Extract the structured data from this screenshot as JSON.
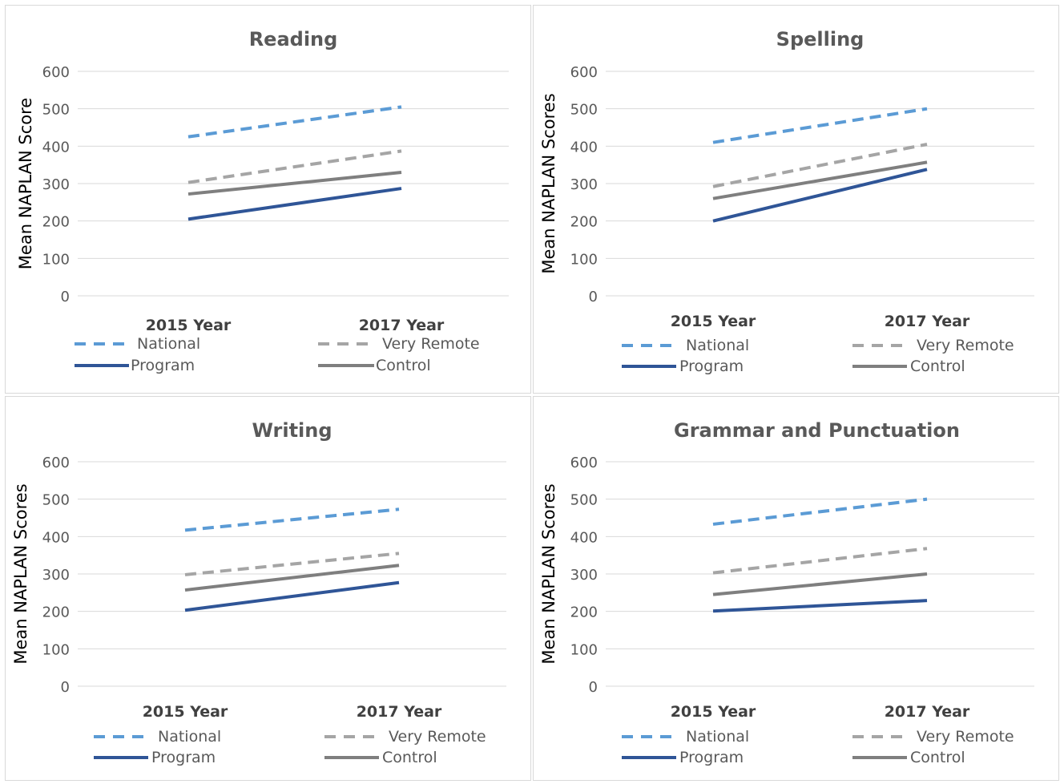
{
  "chart_data": [
    {
      "type": "line",
      "title": "Reading",
      "xlabel": "",
      "ylabel": "Mean NAPLAN Score",
      "ylim": [
        0,
        600
      ],
      "yticks": [
        "0",
        "100",
        "200",
        "300",
        "400",
        "500",
        "600"
      ],
      "categories": [
        "2015 Year",
        "2017 Year"
      ],
      "grid": true,
      "legend": "bottom",
      "series": [
        {
          "name": "National",
          "values": [
            425,
            505
          ],
          "color": "#5b9bd5",
          "dashed": true
        },
        {
          "name": "Very Remote",
          "values": [
            303,
            387
          ],
          "color": "#a5a5a5",
          "dashed": true
        },
        {
          "name": "Program",
          "values": [
            205,
            287
          ],
          "color": "#2f5597",
          "dashed": false
        },
        {
          "name": "Control",
          "values": [
            272,
            330
          ],
          "color": "#7f7f7f",
          "dashed": false
        }
      ]
    },
    {
      "type": "line",
      "title": "Spelling",
      "xlabel": "",
      "ylabel": "Mean NAPLAN Scores",
      "ylim": [
        0,
        600
      ],
      "yticks": [
        "0",
        "100",
        "200",
        "300",
        "400",
        "500",
        "600"
      ],
      "categories": [
        "2015 Year",
        "2017 Year"
      ],
      "grid": true,
      "legend": "bottom",
      "series": [
        {
          "name": "National",
          "values": [
            410,
            500
          ],
          "color": "#5b9bd5",
          "dashed": true
        },
        {
          "name": "Very Remote",
          "values": [
            292,
            405
          ],
          "color": "#a5a5a5",
          "dashed": true
        },
        {
          "name": "Program",
          "values": [
            200,
            338
          ],
          "color": "#2f5597",
          "dashed": false
        },
        {
          "name": "Control",
          "values": [
            260,
            357
          ],
          "color": "#7f7f7f",
          "dashed": false
        }
      ]
    },
    {
      "type": "line",
      "title": "Writing",
      "xlabel": "",
      "ylabel": "Mean NAPLAN Scores",
      "ylim": [
        0,
        600
      ],
      "yticks": [
        "0",
        "100",
        "200",
        "300",
        "400",
        "500",
        "600"
      ],
      "categories": [
        "2015 Year",
        "2017 Year"
      ],
      "grid": true,
      "legend": "bottom",
      "series": [
        {
          "name": "National",
          "values": [
            417,
            473
          ],
          "color": "#5b9bd5",
          "dashed": true
        },
        {
          "name": "Very Remote",
          "values": [
            298,
            355
          ],
          "color": "#a5a5a5",
          "dashed": true
        },
        {
          "name": "Program",
          "values": [
            203,
            277
          ],
          "color": "#2f5597",
          "dashed": false
        },
        {
          "name": "Control",
          "values": [
            257,
            323
          ],
          "color": "#7f7f7f",
          "dashed": false
        }
      ]
    },
    {
      "type": "line",
      "title": "Grammar and Punctuation",
      "xlabel": "",
      "ylabel": "Mean NAPLAN Scores",
      "ylim": [
        0,
        600
      ],
      "yticks": [
        "0",
        "100",
        "200",
        "300",
        "400",
        "500",
        "600"
      ],
      "categories": [
        "2015 Year",
        "2017 Year"
      ],
      "grid": true,
      "legend": "bottom",
      "series": [
        {
          "name": "National",
          "values": [
            433,
            500
          ],
          "color": "#5b9bd5",
          "dashed": true
        },
        {
          "name": "Very Remote",
          "values": [
            303,
            368
          ],
          "color": "#a5a5a5",
          "dashed": true
        },
        {
          "name": "Program",
          "values": [
            201,
            229
          ],
          "color": "#2f5597",
          "dashed": false
        },
        {
          "name": "Control",
          "values": [
            245,
            300
          ],
          "color": "#7f7f7f",
          "dashed": false
        }
      ]
    }
  ]
}
